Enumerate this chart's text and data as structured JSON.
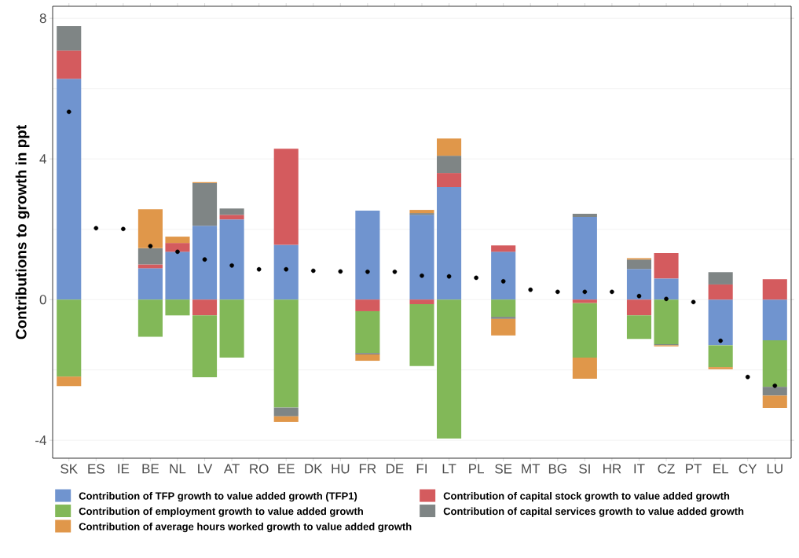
{
  "chart_data": {
    "type": "bar",
    "stacked": true,
    "ylabel": "Contributions to growth in ppt",
    "categories": [
      "SK",
      "ES",
      "IE",
      "BE",
      "NL",
      "LV",
      "AT",
      "RO",
      "EE",
      "DK",
      "HU",
      "FR",
      "DE",
      "FI",
      "LT",
      "PL",
      "SE",
      "MT",
      "BG",
      "SI",
      "HR",
      "IT",
      "CZ",
      "PT",
      "EL",
      "CY",
      "LU"
    ],
    "series": [
      {
        "name": "Contribution of TFP growth to value added growth (TFP1)",
        "color": "#7094cf",
        "values": [
          6.28,
          null,
          null,
          0.89,
          1.36,
          2.1,
          2.28,
          null,
          1.56,
          null,
          null,
          2.53,
          null,
          2.41,
          3.2,
          null,
          1.36,
          null,
          null,
          2.35,
          null,
          0.87,
          0.6,
          null,
          -1.3,
          null,
          -1.16
        ]
      },
      {
        "name": "Contribution of capital stock growth to value added growth",
        "color": "#d45b5e",
        "values": [
          0.8,
          null,
          null,
          0.11,
          0.25,
          -0.45,
          0.13,
          null,
          2.73,
          null,
          null,
          -0.33,
          null,
          -0.13,
          0.4,
          null,
          0.18,
          null,
          null,
          -0.1,
          null,
          -0.45,
          0.72,
          null,
          0.43,
          null,
          0.58
        ]
      },
      {
        "name": "Contribution of employment growth to value added growth",
        "color": "#82b858",
        "values": [
          -2.19,
          null,
          null,
          -1.06,
          -0.45,
          -1.76,
          -1.65,
          null,
          -3.07,
          null,
          null,
          -1.19,
          null,
          -1.76,
          -3.95,
          null,
          -0.49,
          null,
          null,
          -1.55,
          null,
          -0.67,
          -1.27,
          null,
          -0.62,
          null,
          -1.32
        ]
      },
      {
        "name": "Contribution of capital services growth to value added growth",
        "color": "#7f8585",
        "values": [
          0.7,
          null,
          null,
          0.46,
          null,
          1.21,
          0.18,
          null,
          -0.25,
          null,
          null,
          -0.04,
          null,
          0.05,
          0.49,
          null,
          -0.06,
          null,
          null,
          0.09,
          null,
          0.27,
          -0.03,
          null,
          0.35,
          null,
          -0.25
        ]
      },
      {
        "name": "Contribution of average hours worked growth to value added growth",
        "color": "#e0974a",
        "values": [
          -0.27,
          null,
          null,
          1.11,
          0.18,
          0.03,
          null,
          null,
          -0.16,
          null,
          null,
          -0.18,
          null,
          0.09,
          0.49,
          null,
          -0.47,
          null,
          null,
          -0.6,
          null,
          0.04,
          -0.03,
          null,
          -0.06,
          null,
          -0.35
        ]
      },
      {
        "type": "scatter",
        "color": "#000000",
        "marker": "circle",
        "values": [
          5.34,
          2.03,
          2.01,
          1.52,
          1.36,
          1.14,
          0.97,
          0.86,
          0.86,
          0.82,
          0.8,
          0.79,
          0.79,
          0.68,
          0.66,
          0.62,
          0.52,
          0.28,
          0.22,
          0.22,
          0.22,
          0.1,
          0.02,
          -0.07,
          -1.17,
          -2.2,
          -2.45
        ]
      }
    ],
    "ylim": [
      -4.51,
      8.34
    ],
    "yticks": [
      -4,
      0,
      4,
      8
    ],
    "grid": "y",
    "legend": "bottom"
  }
}
